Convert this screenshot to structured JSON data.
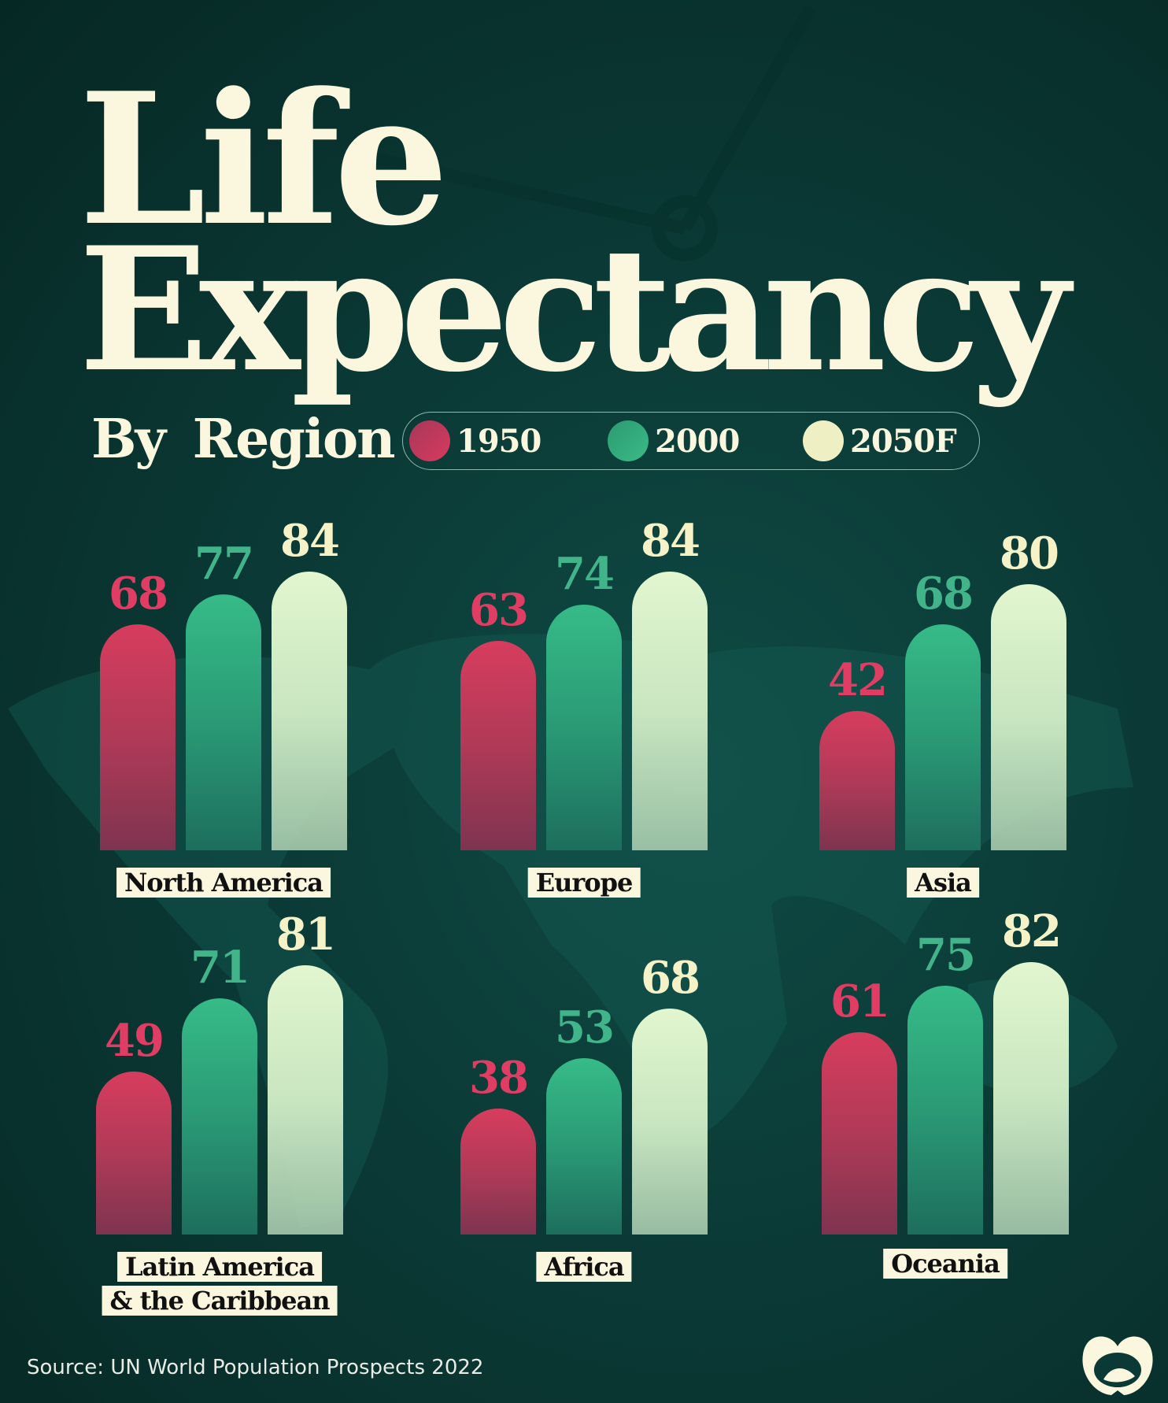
{
  "title_line1": "Life",
  "title_line2": "Expectancy",
  "subtitle": "By Region",
  "source": "Source: UN World Population Prospects 2022",
  "chart_data": {
    "type": "bar",
    "title": "Life Expectancy By Region",
    "series": [
      {
        "name": "1950",
        "color": "#d63a5d"
      },
      {
        "name": "2000",
        "color": "#33b080"
      },
      {
        "name": "2050F",
        "color": "#eef3c9"
      }
    ],
    "categories": [
      "North America",
      "Europe",
      "Asia",
      "Latin America & the Caribbean",
      "Africa",
      "Oceania"
    ],
    "groups": [
      {
        "label": "North America",
        "values": [
          68,
          77,
          84
        ]
      },
      {
        "label": "Europe",
        "values": [
          63,
          74,
          84
        ]
      },
      {
        "label": "Asia",
        "values": [
          42,
          68,
          80
        ]
      },
      {
        "label_lines": [
          "Latin America",
          "& the Caribbean"
        ],
        "values": [
          49,
          71,
          81
        ]
      },
      {
        "label": "Africa",
        "values": [
          38,
          53,
          68
        ]
      },
      {
        "label": "Oceania",
        "values": [
          61,
          75,
          82
        ]
      }
    ],
    "ylim": [
      0,
      90
    ],
    "grid": false,
    "legend": "top"
  }
}
